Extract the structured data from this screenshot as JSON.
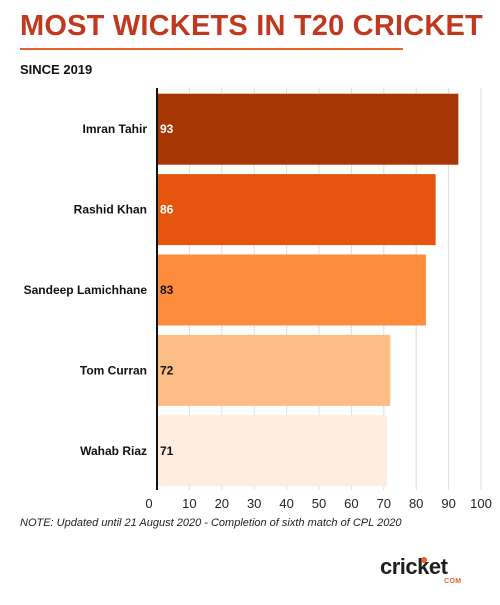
{
  "header": {
    "title": "MOST WICKETS IN T20 CRICKET",
    "subtitle": "SINCE 2019"
  },
  "chart_data": {
    "type": "bar",
    "orientation": "horizontal",
    "title": "MOST WICKETS IN T20 CRICKET",
    "subtitle": "SINCE 2019",
    "categories": [
      "Imran Tahir",
      "Rashid Khan",
      "Sandeep Lamichhane",
      "Tom Curran",
      "Wahab Riaz"
    ],
    "values": [
      93,
      86,
      83,
      72,
      71
    ],
    "data_labels": [
      "93",
      "86",
      "83",
      "72",
      "71"
    ],
    "colors": [
      "#a63603",
      "#e6550d",
      "#fd8d3c",
      "#fdbe85",
      "#feeddf"
    ],
    "label_colors": [
      "#ffffff",
      "#ffffff",
      "#111111",
      "#111111",
      "#111111"
    ],
    "x_ticks": [
      0,
      10,
      20,
      30,
      40,
      50,
      60,
      70,
      80,
      90,
      100
    ],
    "xlim": [
      0,
      100
    ],
    "xlabel": "",
    "ylabel": "",
    "grid": "vertical"
  },
  "footer": {
    "note": "NOTE: Updated until 21 August 2020 - Completion of sixth match of CPL 2020",
    "logo_text": "cricket",
    "logo_sub": "COM"
  }
}
